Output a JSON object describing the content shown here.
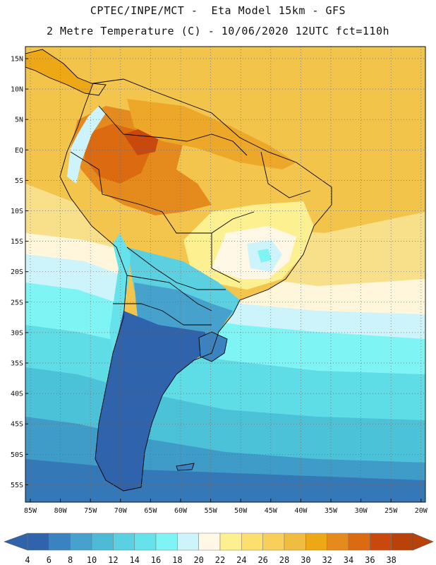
{
  "header": {
    "line1": "CPTEC/INPE/MCT -  Eta Model 15km - GFS",
    "line2": "2 Metre Temperature (C) - 10/06/2020 12UTC fct=110h"
  },
  "map": {
    "lat_labels": [
      "15N",
      "10N",
      "5N",
      "EQ",
      "5S",
      "10S",
      "15S",
      "20S",
      "25S",
      "30S",
      "35S",
      "40S",
      "45S",
      "50S",
      "55S"
    ],
    "lon_labels": [
      "85W",
      "80W",
      "75W",
      "70W",
      "65W",
      "60W",
      "55W",
      "50W",
      "45W",
      "40W",
      "35W",
      "30W",
      "25W",
      "20W"
    ],
    "grid_style": "dotted"
  },
  "colorbar": {
    "ticks": [
      "4",
      "6",
      "8",
      "10",
      "12",
      "14",
      "16",
      "18",
      "20",
      "22",
      "24",
      "26",
      "28",
      "30",
      "32",
      "34",
      "36",
      "38"
    ],
    "colors": [
      "#2f64ac",
      "#3a82c0",
      "#46a2cc",
      "#4dbbd6",
      "#5bd0e0",
      "#66e2ea",
      "#7ff4f4",
      "#cdf3fb",
      "#fff8e6",
      "#fdf090",
      "#fbe070",
      "#f7cf5a",
      "#f0bd40",
      "#eea816",
      "#e58a1d",
      "#dc6a10",
      "#c9480e",
      "#b8420a"
    ],
    "left_arrow_color": "#2f64ac",
    "right_arrow_color": "#b8420a"
  }
}
